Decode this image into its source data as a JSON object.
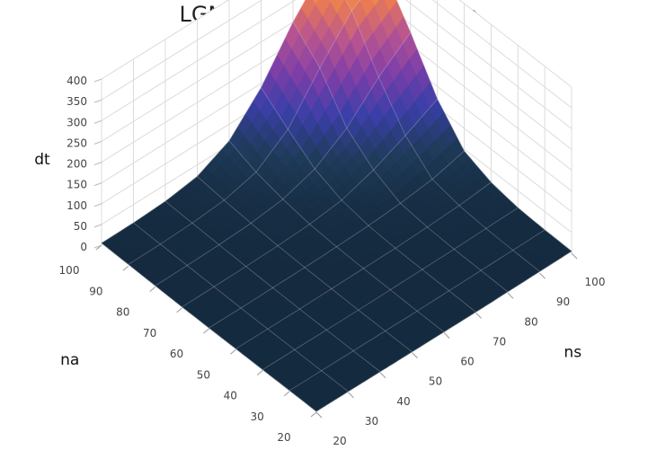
{
  "chart_data": {
    "type": "surface",
    "title": "LGMRES Convergence Time",
    "xlabel": "ns",
    "ylabel": "na",
    "zlabel": "dt",
    "ns_values": [
      20,
      30,
      40,
      50,
      60,
      70,
      80,
      90,
      100
    ],
    "na_values": [
      20,
      30,
      40,
      50,
      60,
      70,
      80,
      90,
      100
    ],
    "ns_ticks": [
      "20",
      "30",
      "40",
      "50",
      "60",
      "70",
      "80",
      "90",
      "100"
    ],
    "na_ticks": [
      "20",
      "30",
      "40",
      "50",
      "60",
      "70",
      "80",
      "90",
      "100"
    ],
    "dt_ticks": [
      "0",
      "50",
      "100",
      "150",
      "200",
      "250",
      "300",
      "350",
      "400"
    ],
    "zlim": [
      0,
      400
    ],
    "colorscale": [
      "#14293d",
      "#1f3b5a",
      "#3a3fa8",
      "#7b3ea8",
      "#b55392",
      "#e97a55",
      "#f8b33a",
      "#f6f46a"
    ],
    "dt_grid": [
      [
        2,
        2,
        2,
        2,
        2,
        2,
        3,
        4,
        5
      ],
      [
        2,
        2,
        2,
        2,
        2,
        3,
        4,
        5,
        6
      ],
      [
        2,
        2,
        2,
        2,
        3,
        4,
        5,
        7,
        9
      ],
      [
        2,
        2,
        2,
        3,
        4,
        5,
        8,
        12,
        20
      ],
      [
        2,
        2,
        3,
        4,
        6,
        9,
        15,
        25,
        45
      ],
      [
        2,
        3,
        4,
        6,
        10,
        20,
        45,
        80,
        120
      ],
      [
        3,
        4,
        6,
        10,
        20,
        45,
        95,
        170,
        230
      ],
      [
        4,
        5,
        8,
        15,
        35,
        90,
        190,
        280,
        330
      ],
      [
        5,
        6,
        10,
        22,
        60,
        140,
        250,
        340,
        400
      ]
    ]
  }
}
